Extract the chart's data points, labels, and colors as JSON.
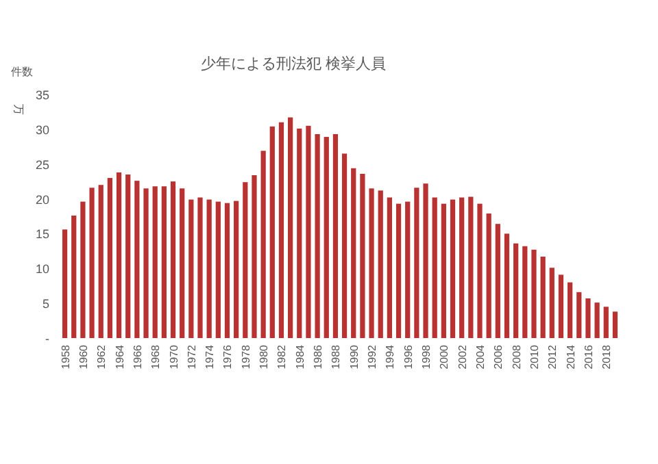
{
  "chart_data": {
    "type": "bar",
    "title": "少年による刑法犯  検挙人員",
    "ylabel": "万",
    "annotations": [
      "件数"
    ],
    "categories": [
      "1958",
      null,
      "1960",
      null,
      "1962",
      null,
      "1964",
      null,
      "1966",
      null,
      "1968",
      null,
      "1970",
      null,
      "1972",
      null,
      "1974",
      null,
      "1976",
      null,
      "1978",
      null,
      "1980",
      null,
      "1982",
      null,
      "1984",
      null,
      "1986",
      null,
      "1988",
      null,
      "1990",
      null,
      "1992",
      null,
      "1994",
      null,
      "1996",
      null,
      "1998",
      null,
      "2000",
      null,
      "2002",
      null,
      "2004",
      null,
      "2006",
      null,
      "2008",
      null,
      "2010",
      null,
      "2012",
      null,
      "2014",
      null,
      "2016",
      null,
      "2018",
      null
    ],
    "values": [
      15.6,
      17.6,
      19.6,
      21.6,
      22.0,
      23.0,
      23.8,
      23.5,
      22.6,
      21.5,
      21.8,
      21.8,
      22.5,
      21.5,
      19.9,
      20.2,
      19.9,
      19.6,
      19.4,
      19.7,
      22.4,
      23.4,
      26.9,
      30.4,
      31.0,
      31.7,
      30.1,
      30.5,
      29.3,
      28.9,
      29.3,
      26.5,
      24.4,
      23.6,
      21.5,
      21.2,
      20.2,
      19.3,
      19.6,
      21.6,
      22.2,
      20.2,
      19.3,
      19.9,
      20.2,
      20.3,
      19.3,
      17.9,
      16.4,
      15.0,
      13.6,
      13.2,
      12.7,
      11.7,
      10.1,
      9.1,
      8.0,
      6.6,
      5.7,
      5.1,
      4.5,
      3.8
    ],
    "color": "#b83232",
    "ylim": [
      0,
      35
    ],
    "yticks": [
      {
        "value": 0,
        "label": "-"
      },
      5,
      10,
      15,
      20,
      25,
      30,
      35
    ]
  }
}
